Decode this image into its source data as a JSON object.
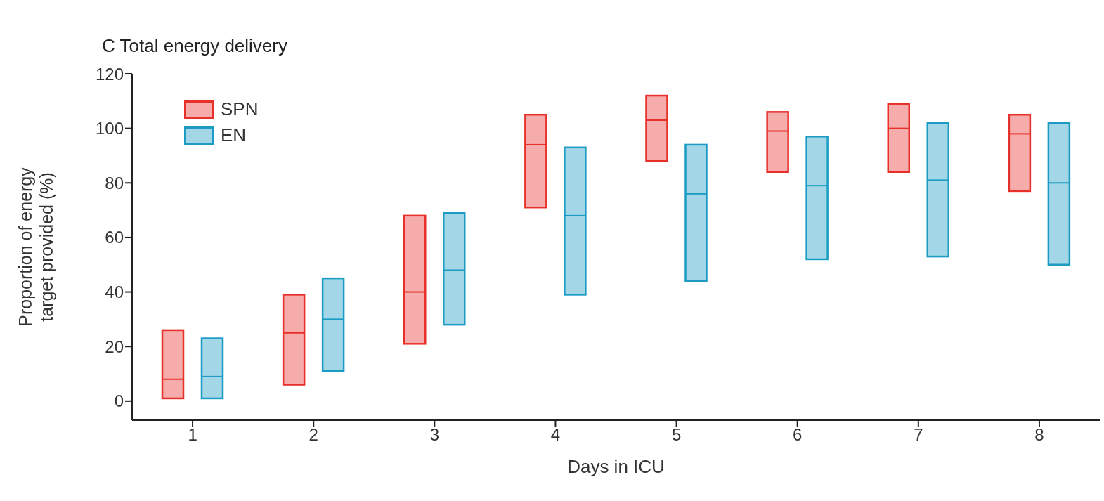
{
  "chart_data": {
    "type": "box",
    "title": "C  Total energy delivery",
    "xlabel": "Days in ICU",
    "ylabel": "Proportion of energy target provided (%)",
    "categories": [
      "1",
      "2",
      "3",
      "4",
      "5",
      "6",
      "7",
      "8"
    ],
    "ylim": [
      -7,
      120
    ],
    "yticks": [
      0,
      20,
      40,
      60,
      80,
      100,
      120
    ],
    "grid": false,
    "legend": "top left",
    "series": [
      {
        "name": "SPN",
        "color": "#e8302a",
        "boxes": [
          {
            "low": 1,
            "q1": 1,
            "median": 8,
            "q3": 26,
            "high": 26
          },
          {
            "low": 6,
            "q1": 6,
            "median": 25,
            "q3": 39,
            "high": 39
          },
          {
            "low": 21,
            "q1": 21,
            "median": 40,
            "q3": 68,
            "high": 68
          },
          {
            "low": 71,
            "q1": 71,
            "median": 94,
            "q3": 105,
            "high": 105
          },
          {
            "low": 88,
            "q1": 88,
            "median": 103,
            "q3": 112,
            "high": 112
          },
          {
            "low": 84,
            "q1": 84,
            "median": 99,
            "q3": 106,
            "high": 106
          },
          {
            "low": 84,
            "q1": 84,
            "median": 100,
            "q3": 109,
            "high": 109
          },
          {
            "low": 77,
            "q1": 77,
            "median": 98,
            "q3": 105,
            "high": 105
          }
        ]
      },
      {
        "name": "EN",
        "color": "#1a9cc4",
        "boxes": [
          {
            "low": 1,
            "q1": 1,
            "median": 9,
            "q3": 23,
            "high": 23
          },
          {
            "low": 11,
            "q1": 11,
            "median": 30,
            "q3": 45,
            "high": 45
          },
          {
            "low": 28,
            "q1": 28,
            "median": 48,
            "q3": 69,
            "high": 69
          },
          {
            "low": 39,
            "q1": 39,
            "median": 68,
            "q3": 93,
            "high": 93
          },
          {
            "low": 44,
            "q1": 44,
            "median": 76,
            "q3": 94,
            "high": 94
          },
          {
            "low": 52,
            "q1": 52,
            "median": 79,
            "q3": 97,
            "high": 97
          },
          {
            "low": 53,
            "q1": 53,
            "median": 81,
            "q3": 102,
            "high": 102
          },
          {
            "low": 50,
            "q1": 50,
            "median": 80,
            "q3": 102,
            "high": 102
          }
        ]
      }
    ]
  }
}
